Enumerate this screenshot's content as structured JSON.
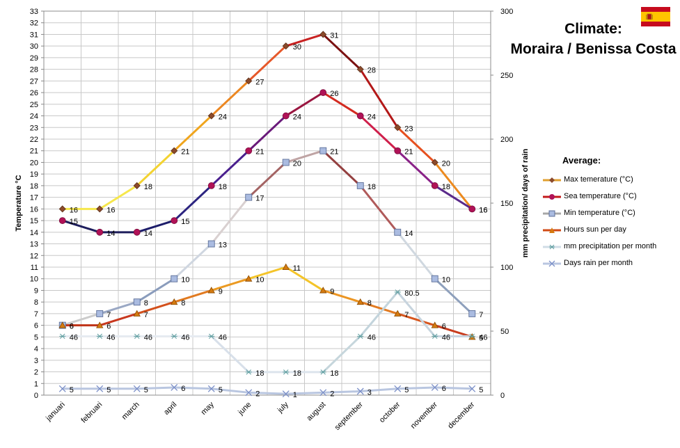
{
  "title_line1": "Climate:",
  "title_line2": "Moraira / Benissa Costa",
  "flag_icon": "spain-flag-icon",
  "legend_title": "Average:",
  "chart_data": {
    "type": "line",
    "categories": [
      "januari",
      "februari",
      "march",
      "april",
      "may",
      "june",
      "july",
      "august",
      "september",
      "october",
      "november",
      "december"
    ],
    "ylabel": "Temperature °C",
    "y2label": "mm precipitation/ days of rain",
    "ylim": [
      0,
      33
    ],
    "y2lim": [
      0,
      300
    ],
    "grid": true,
    "legend_position": "right",
    "series": [
      {
        "name": "Max temerature (°C)",
        "axis": "left",
        "values": [
          16,
          16,
          18,
          21,
          24,
          27,
          30,
          31,
          28,
          23,
          20,
          16
        ],
        "marker": "diamond",
        "marker_color": "#8b4a2b",
        "colors": [
          "#f6e74c",
          "#f6e74c",
          "#f3d331",
          "#f0a51d",
          "#ec8721",
          "#e6582a",
          "#c92222",
          "#7b1111",
          "#b31818",
          "#e6501f",
          "#ec8a1e",
          "#f2c830"
        ]
      },
      {
        "name": "Sea temperature (°C)",
        "axis": "left",
        "values": [
          15,
          14,
          14,
          15,
          18,
          21,
          24,
          26,
          24,
          21,
          18,
          16
        ],
        "marker": "circle",
        "marker_color": "#b01257",
        "colors": [
          "#1d1d5c",
          "#1d1d5c",
          "#1d1d6a",
          "#2c2480",
          "#4a1f8e",
          "#6a1a7a",
          "#9a1640",
          "#d32a20",
          "#cf1f4b",
          "#8a2288",
          "#5a2a8a",
          "#4b2080"
        ]
      },
      {
        "name": "Min temperature (°C)",
        "axis": "left",
        "values": [
          6,
          7,
          8,
          10,
          13,
          17,
          20,
          21,
          18,
          14,
          10,
          7
        ],
        "marker": "square",
        "marker_color": "#aabbe0",
        "colors": [
          "#cccccc",
          "#9aa8c4",
          "#8a9cbc",
          "#cfd6e0",
          "#d9d0d0",
          "#a46464",
          "#bfa4a4",
          "#944040",
          "#b05a5a",
          "#d0d8e0",
          "#8ea0bc",
          "#7a8eb0"
        ]
      },
      {
        "name": "Hours sun per day",
        "axis": "left",
        "values": [
          6,
          6,
          7,
          8,
          9,
          10,
          11,
          9,
          8,
          7,
          6,
          5
        ],
        "marker": "triangle",
        "marker_color": "#d47a10",
        "colors": [
          "#c03318",
          "#c8381e",
          "#d3501c",
          "#e17a20",
          "#eb9a22",
          "#f4c429",
          "#f4c429",
          "#ec9522",
          "#e27a20",
          "#d7561e",
          "#c83c1e",
          "#b32e1a"
        ]
      },
      {
        "name": "mm precipitation per month",
        "axis": "right",
        "values": [
          46,
          46,
          46,
          46,
          46,
          18,
          18,
          18,
          46,
          80.5,
          46,
          46
        ],
        "marker": "asterisk",
        "marker_color": "#5f9ea0",
        "colors": [
          "#e7ecf2",
          "#e7ecf2",
          "#e7ecf2",
          "#e7ecf2",
          "#d8e0ea",
          "#dce4ec",
          "#dce4ec",
          "#c6d6dc",
          "#c3d4dc",
          "#c7d4de",
          "#c8d4e0",
          "#c8d4e0"
        ]
      },
      {
        "name": "Days rain per month",
        "axis": "right",
        "values": [
          5,
          5,
          5,
          6,
          5,
          2,
          1,
          2,
          3,
          5,
          6,
          5
        ],
        "marker": "cross",
        "marker_color": "#7b8fc8",
        "colors": [
          "#b9c6e0",
          "#b9c6e0",
          "#b9c6e0",
          "#b9c6e0",
          "#b9c6e0",
          "#b9c6e0",
          "#b9c6e0",
          "#b9c6e0",
          "#b9c6e0",
          "#b9c6e0",
          "#b9c6e0",
          "#b9c6e0"
        ]
      }
    ]
  }
}
